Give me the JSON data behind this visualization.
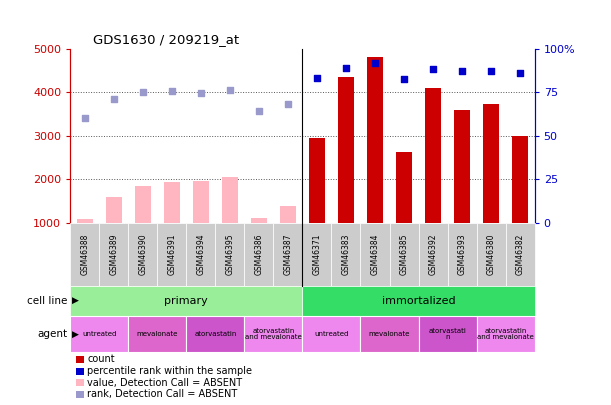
{
  "title": "GDS1630 / 209219_at",
  "samples": [
    "GSM46388",
    "GSM46389",
    "GSM46390",
    "GSM46391",
    "GSM46394",
    "GSM46395",
    "GSM46386",
    "GSM46387",
    "GSM46371",
    "GSM46383",
    "GSM46384",
    "GSM46385",
    "GSM46392",
    "GSM46393",
    "GSM46380",
    "GSM46382"
  ],
  "count_values": [
    null,
    null,
    null,
    null,
    null,
    null,
    null,
    null,
    2950,
    4350,
    4800,
    2620,
    4100,
    3580,
    3720,
    3000
  ],
  "count_absent": [
    1080,
    1580,
    1850,
    1940,
    1960,
    2060,
    1120,
    1380,
    null,
    null,
    null,
    null,
    null,
    null,
    null,
    null
  ],
  "percentile_values": [
    null,
    null,
    null,
    null,
    null,
    null,
    null,
    null,
    4320,
    4560,
    4680,
    4300,
    4540,
    4480,
    4480,
    4440
  ],
  "percentile_absent": [
    3400,
    3850,
    4010,
    4020,
    3980,
    4050,
    3560,
    3720,
    null,
    null,
    null,
    null,
    null,
    null,
    null,
    null
  ],
  "ylim_left": [
    1000,
    5000
  ],
  "ylim_right": [
    0,
    100
  ],
  "right_ticks": [
    0,
    25,
    50,
    75,
    100
  ],
  "right_tick_labels": [
    "0",
    "25",
    "50",
    "75",
    "100%"
  ],
  "left_ticks": [
    1000,
    2000,
    3000,
    4000,
    5000
  ],
  "cell_line_groups": [
    {
      "label": "primary",
      "start": 0,
      "end": 8,
      "color": "#99ee99"
    },
    {
      "label": "immortalized",
      "start": 8,
      "end": 16,
      "color": "#33dd66"
    }
  ],
  "agent_groups": [
    {
      "label": "untreated",
      "start": 0,
      "end": 2,
      "color": "#ee88ee"
    },
    {
      "label": "mevalonate",
      "start": 2,
      "end": 4,
      "color": "#dd66cc"
    },
    {
      "label": "atorvastatin",
      "start": 4,
      "end": 6,
      "color": "#cc55cc"
    },
    {
      "label": "atorvastatin\nand mevalonate",
      "start": 6,
      "end": 8,
      "color": "#ee88ee"
    },
    {
      "label": "untreated",
      "start": 8,
      "end": 10,
      "color": "#ee88ee"
    },
    {
      "label": "mevalonate",
      "start": 10,
      "end": 12,
      "color": "#dd66cc"
    },
    {
      "label": "atorvastati\nn",
      "start": 12,
      "end": 14,
      "color": "#cc55cc"
    },
    {
      "label": "atorvastatin\nand mevalonate",
      "start": 14,
      "end": 16,
      "color": "#ee88ee"
    }
  ],
  "bar_color_present": "#cc0000",
  "bar_color_absent": "#ffb6c1",
  "dot_color_present": "#0000cc",
  "dot_color_absent": "#9999cc",
  "bar_width": 0.55,
  "background_color": "#ffffff",
  "xticklabel_bg": "#cccccc",
  "gridline_color": "#555555",
  "tick_color_left": "#cc0000",
  "tick_color_right": "#0000cc"
}
